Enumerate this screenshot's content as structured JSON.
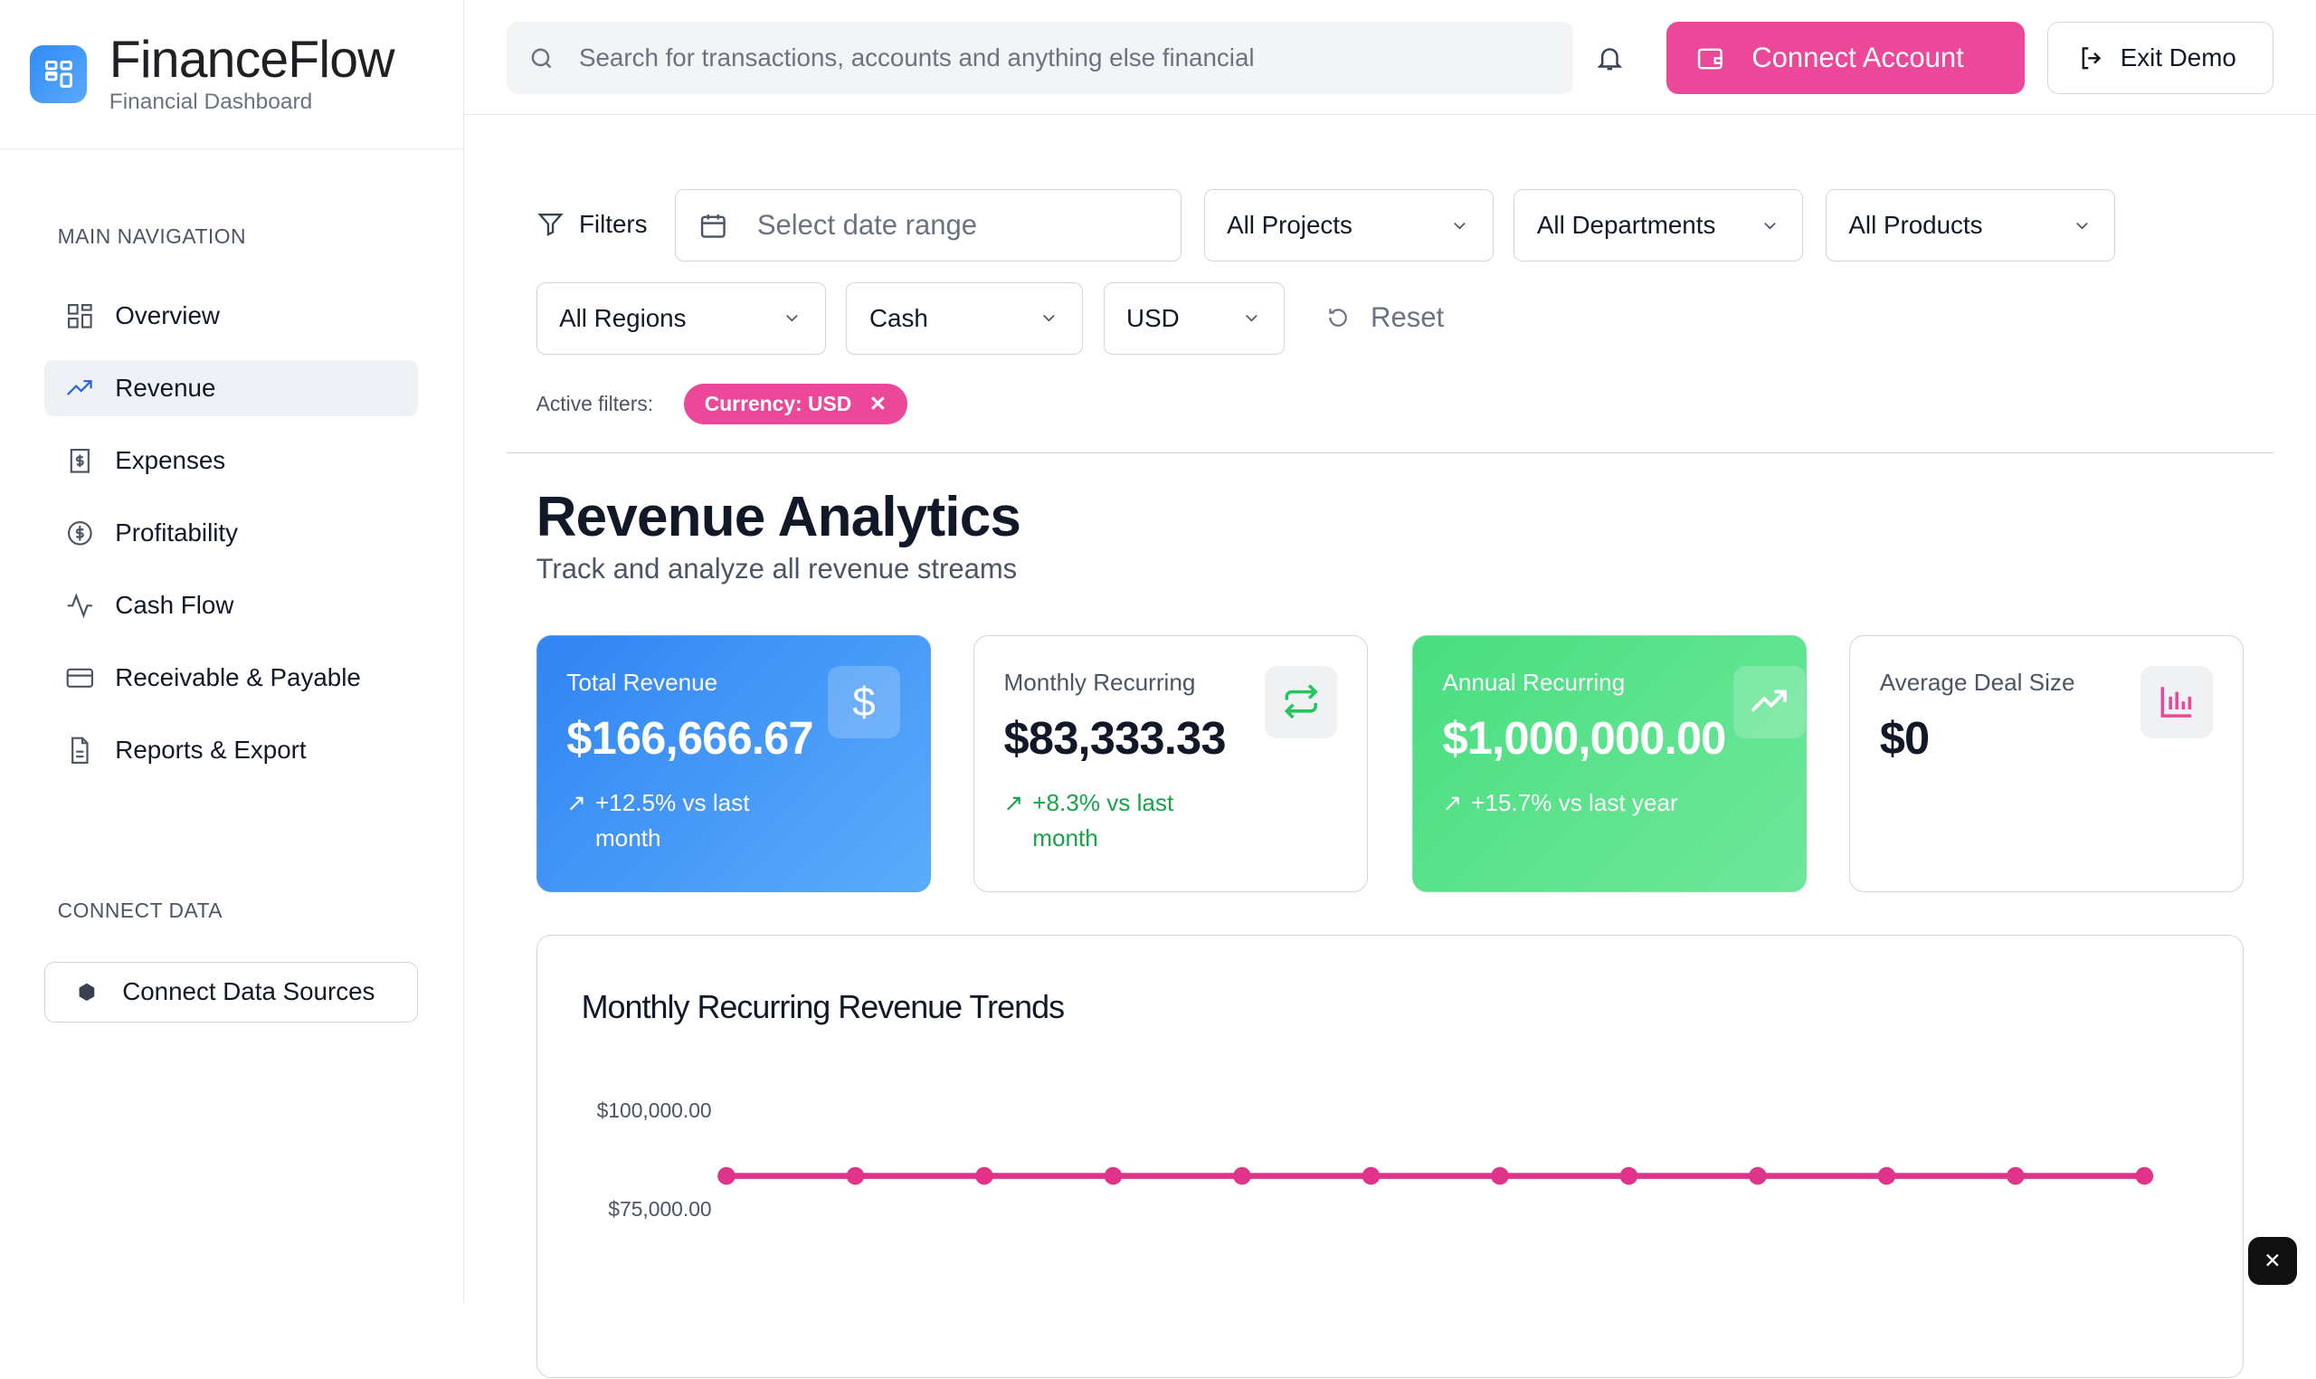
{
  "brand": {
    "title": "FinanceFlow",
    "subtitle": "Financial Dashboard"
  },
  "sidebar": {
    "main_nav_label": "MAIN NAVIGATION",
    "items": [
      {
        "label": "Overview",
        "icon": "layout-grid-icon"
      },
      {
        "label": "Revenue",
        "icon": "trending-up-icon",
        "active": true
      },
      {
        "label": "Expenses",
        "icon": "receipt-icon"
      },
      {
        "label": "Profitability",
        "icon": "dollar-circle-icon"
      },
      {
        "label": "Cash Flow",
        "icon": "activity-icon"
      },
      {
        "label": "Receivable & Payable",
        "icon": "credit-card-icon"
      },
      {
        "label": "Reports & Export",
        "icon": "file-text-icon"
      }
    ],
    "connect_label": "CONNECT DATA",
    "connect_button": "Connect Data Sources"
  },
  "topbar": {
    "search_placeholder": "Search for transactions, accounts and anything else financial",
    "connect_account": "Connect Account",
    "exit_demo": "Exit Demo"
  },
  "filters": {
    "label": "Filters",
    "date_placeholder": "Select date range",
    "projects": "All Projects",
    "departments": "All Departments",
    "products": "All Products",
    "regions": "All Regions",
    "account_type": "Cash",
    "currency": "USD",
    "reset": "Reset",
    "active_label": "Active filters:",
    "active_chip": "Currency: USD"
  },
  "page": {
    "title": "Revenue Analytics",
    "subtitle": "Track and analyze all revenue streams"
  },
  "cards": [
    {
      "label": "Total Revenue",
      "value": "$166,666.67",
      "change": "+12.5% vs last month",
      "icon": "dollar-icon"
    },
    {
      "label": "Monthly Recurring",
      "value": "$83,333.33",
      "change": "+8.3% vs last month",
      "icon": "repeat-icon"
    },
    {
      "label": "Annual Recurring",
      "value": "$1,000,000.00",
      "change": "+15.7% vs last year",
      "icon": "trending-up-icon"
    },
    {
      "label": "Average Deal Size",
      "value": "$0",
      "icon": "bar-chart-icon"
    }
  ],
  "chart_data": {
    "type": "line",
    "title": "Monthly Recurring Revenue Trends",
    "y_ticks": [
      "$100,000.00",
      "$75,000.00"
    ],
    "ylim": [
      75000,
      100000
    ],
    "series": [
      {
        "color": "#e0338a",
        "values": [
          83333.33,
          83333.33,
          83333.33,
          83333.33,
          83333.33,
          83333.33,
          83333.33,
          83333.33,
          83333.33,
          83333.33,
          83333.33,
          83333.33
        ]
      }
    ]
  },
  "colors": {
    "accent": "#ec4899",
    "blue": "#3b8ff5",
    "green": "#4ade80"
  }
}
